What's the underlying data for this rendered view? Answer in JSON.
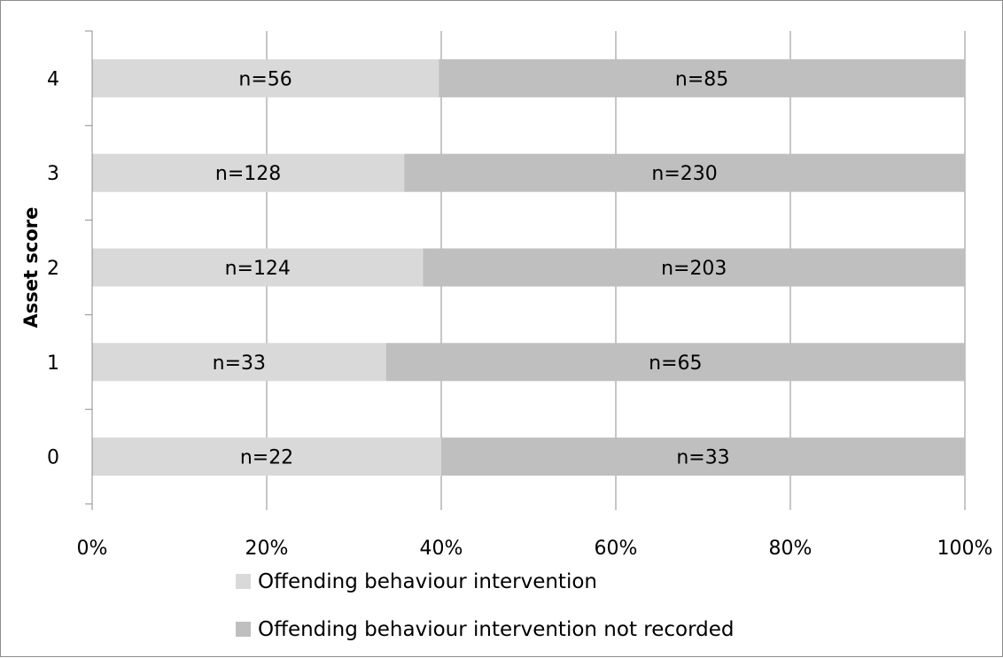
{
  "chart_data": {
    "type": "bar",
    "orientation": "horizontal",
    "stacked": "percent",
    "title": "",
    "xlabel": "",
    "ylabel": "Asset score",
    "categories": [
      "0",
      "1",
      "2",
      "3",
      "4"
    ],
    "xlim": [
      0,
      100
    ],
    "x_ticks": [
      "0%",
      "20%",
      "40%",
      "60%",
      "80%",
      "100%"
    ],
    "grid": "vertical",
    "legend_position": "bottom",
    "series": [
      {
        "name": "Offending behaviour intervention",
        "color": "#d9d9d9",
        "values": [
          22,
          33,
          124,
          128,
          56
        ],
        "labels": [
          "n=22",
          "n=33",
          "n=124",
          "n=128",
          "n=56"
        ]
      },
      {
        "name": "Offending behaviour intervention not recorded",
        "color": "#bfbfbf",
        "values": [
          33,
          65,
          203,
          230,
          85
        ],
        "labels": [
          "n=33",
          "n=65",
          "n=203",
          "n=230",
          "n=85"
        ]
      }
    ]
  }
}
